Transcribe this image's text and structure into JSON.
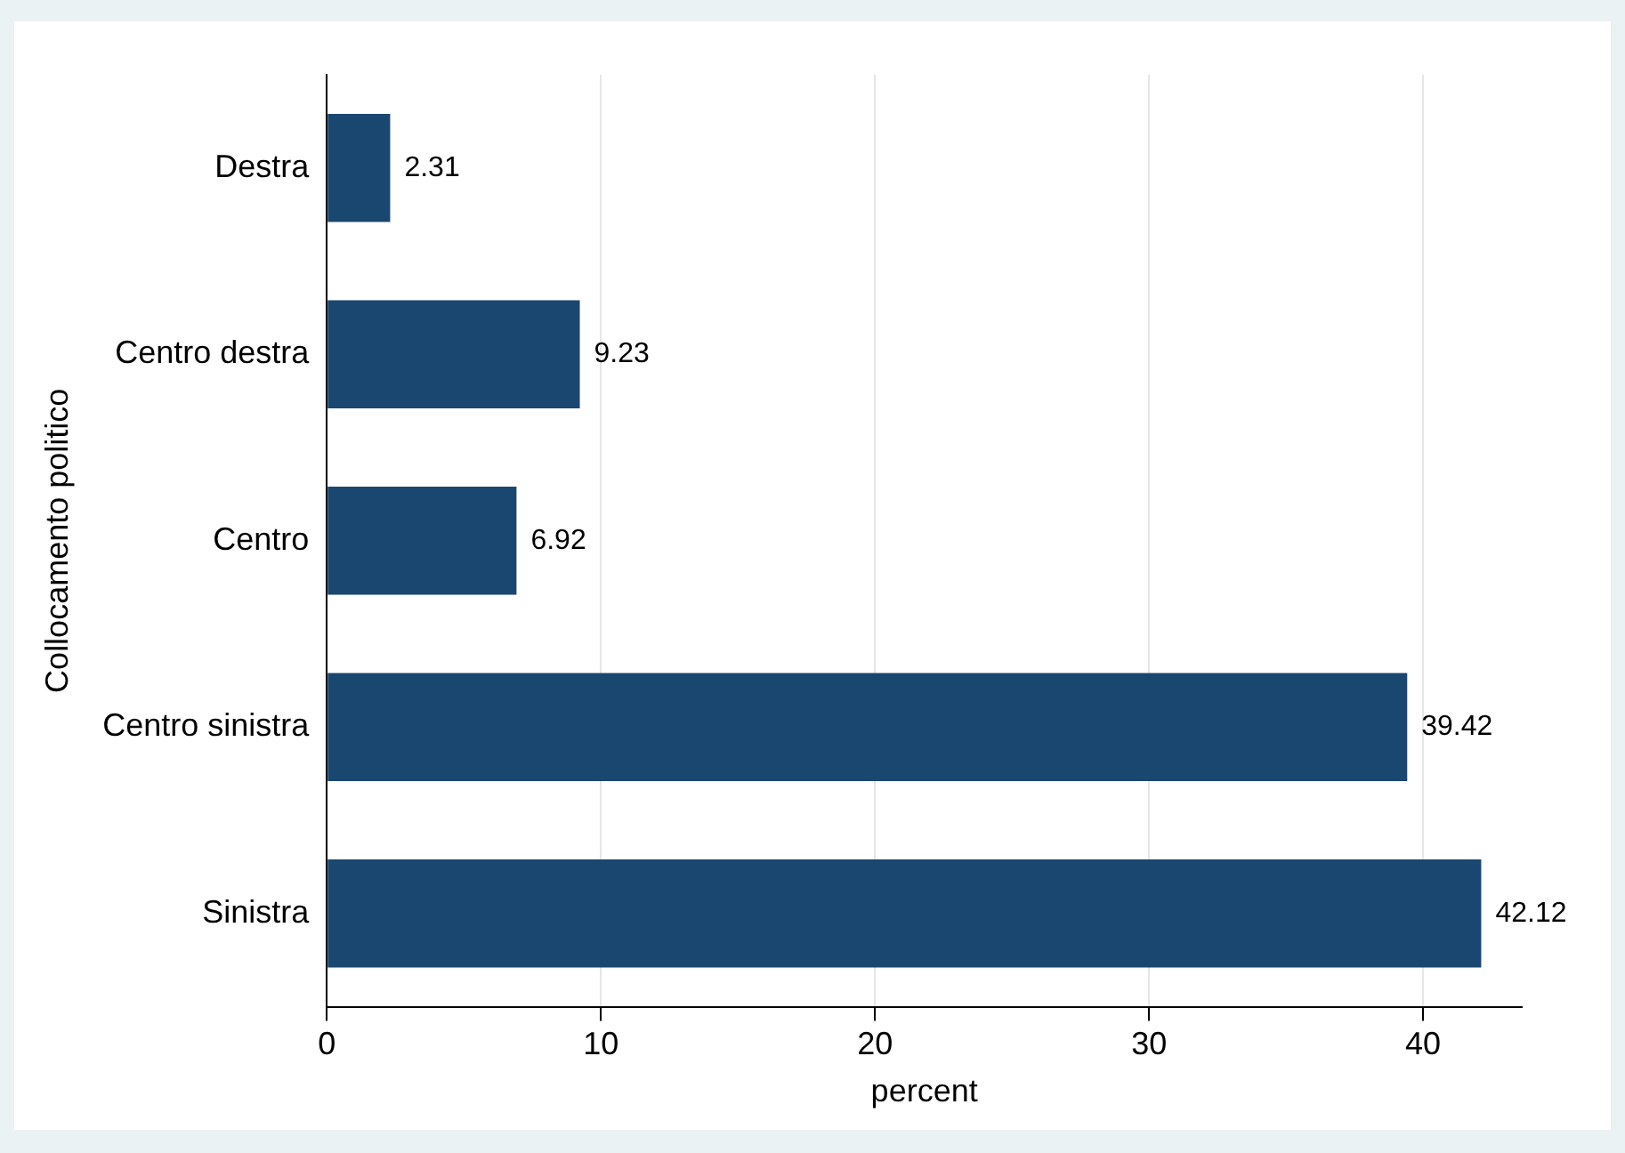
{
  "chart_data": {
    "type": "bar",
    "orientation": "horizontal",
    "categories": [
      "Destra",
      "Centro destra",
      "Centro",
      "Centro sinistra",
      "Sinistra"
    ],
    "values": [
      2.31,
      9.23,
      6.92,
      39.42,
      42.12
    ],
    "color": "#1a476f",
    "data_labels": true,
    "xlabel": "percent",
    "ylabel": "Collocamento politico",
    "xlim": [
      0,
      43.6
    ],
    "xticks": [
      0,
      10,
      20,
      30,
      40
    ],
    "grid": "x",
    "legend": false
  }
}
